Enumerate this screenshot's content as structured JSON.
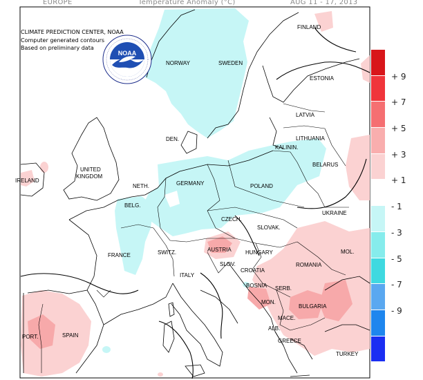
{
  "header": {
    "region": "EUROPE",
    "title": "Temperature Anomaly (°C)",
    "date_range": "AUG 11 - 17, 2013"
  },
  "credit": {
    "line1": "CLIMATE PREDICTION CENTER, NOAA",
    "line2": "Computer generated contours",
    "line3": "Based on preliminary data"
  },
  "logo": {
    "text": "NOAA",
    "ring_text": "NATIONAL OCEANIC AND ATMOSPHERIC ADMINISTRATION · U.S. DEPARTMENT OF COMMERCE"
  },
  "legend": {
    "colors": [
      "#d8161a",
      "#f0353b",
      "#f56f72",
      "#f9aeae",
      "#fbd2d2",
      "#ffffff",
      "#c6f6f6",
      "#86ecec",
      "#3fd9e0",
      "#5aa8f0",
      "#1e86ee",
      "#1a2ef2"
    ],
    "labels": [
      "+ 9",
      "+ 7",
      "+ 5",
      "+ 3",
      "+ 1",
      "- 1",
      "- 3",
      "- 5",
      "- 7",
      "- 9"
    ]
  },
  "countries": {
    "finland": "FINLAND",
    "norway": "NORWAY",
    "sweden": "SWEDEN",
    "estonia": "ESTONIA",
    "latvia": "LATVIA",
    "lithuania": "LITHUANIA",
    "kalinin": "KALININ.",
    "belarus": "BELARUS",
    "denmark": "DEN.",
    "uk": "UNITED\nKINGDOM",
    "ireland": "IRELAND",
    "neth": "NETH.",
    "germany": "GERMANY",
    "poland": "POLAND",
    "belg": "BELG.",
    "czech": "CZECH.",
    "slovak": "SLOVAK.",
    "ukraine": "UKRAINE",
    "france": "FRANCE",
    "switz": "SWITZ.",
    "austria": "AUSTRIA",
    "hungary": "HUNGARY",
    "mol": "MOL.",
    "romania": "ROMANIA",
    "slov": "SLOV.",
    "italy": "ITALY",
    "croatia": "CROATIA",
    "bosnia": "BOSNIA",
    "serb": "SERB.",
    "mon": "MON.",
    "bulgaria": "BULGARIA",
    "mace": "MACE.",
    "alb": "ALB.",
    "greece": "GREECE",
    "port": "PORT.",
    "spain": "SPAIN",
    "turkey": "TURKEY"
  }
}
